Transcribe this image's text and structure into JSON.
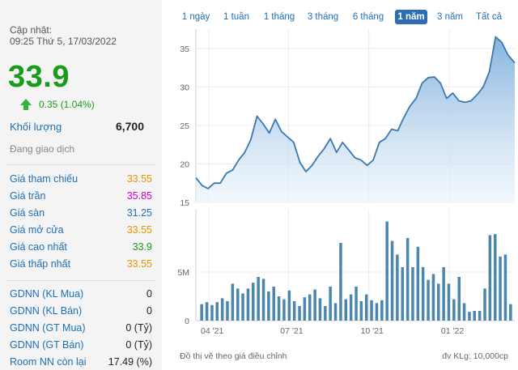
{
  "summary": {
    "update_label": "Cập nhật:",
    "update_time": "09:25 Thứ 5, 17/03/2022",
    "price": "33.9",
    "change": "0.35 (1.04%)",
    "volume_label": "Khối lượng",
    "volume_value": "6,700",
    "status": "Đang giao dịch"
  },
  "price_rows": [
    {
      "label": "Giá tham chiếu",
      "value": "33.55",
      "color": "#e69500"
    },
    {
      "label": "Giá trần",
      "value": "35.85",
      "color": "#cc00cc"
    },
    {
      "label": "Giá sàn",
      "value": "31.25",
      "color": "#1f6fb5"
    },
    {
      "label": "Giá mở cửa",
      "value": "33.55",
      "color": "#e69500"
    },
    {
      "label": "Giá cao nhất",
      "value": "33.9",
      "color": "#1a9c1a"
    },
    {
      "label": "Giá thấp nhất",
      "value": "33.55",
      "color": "#e69500"
    }
  ],
  "foreign_rows": [
    {
      "label": "GDNN (KL Mua)",
      "value": "0",
      "color": "#222222"
    },
    {
      "label": "GDNN (KL Bán)",
      "value": "0",
      "color": "#222222"
    },
    {
      "label": "GDNN (GT Mua)",
      "value": "0 (Tỷ)",
      "color": "#222222"
    },
    {
      "label": "GDNN (GT Bán)",
      "value": "0 (Tỷ)",
      "color": "#222222"
    },
    {
      "label": "Room NN còn lại",
      "value": "17.49 (%)",
      "color": "#222222"
    }
  ],
  "tabs": [
    {
      "label": "1 ngày",
      "active": false
    },
    {
      "label": "1 tuần",
      "active": false
    },
    {
      "label": "1 tháng",
      "active": false
    },
    {
      "label": "3 tháng",
      "active": false
    },
    {
      "label": "6 tháng",
      "active": false
    },
    {
      "label": "1 năm",
      "active": true
    },
    {
      "label": "3 năm",
      "active": false
    },
    {
      "label": "Tất cả",
      "active": false
    }
  ],
  "footer": {
    "left": "Đồ thị vẽ theo giá điều chỉnh",
    "right": "đv KLg: 10,000cp"
  },
  "colors": {
    "up": "#1a9c1a",
    "line": "#3a78b0",
    "bar": "#4a86ad"
  },
  "chart_data": {
    "type": "area",
    "price": {
      "x": [
        "2021-03-17",
        "2021-03-24",
        "2021-03-31",
        "2021-04-07",
        "2021-04-14",
        "2021-04-21",
        "2021-04-28",
        "2021-05-05",
        "2021-05-12",
        "2021-05-19",
        "2021-05-26",
        "2021-06-02",
        "2021-06-09",
        "2021-06-16",
        "2021-06-23",
        "2021-06-30",
        "2021-07-07",
        "2021-07-14",
        "2021-07-21",
        "2021-07-28",
        "2021-08-04",
        "2021-08-11",
        "2021-08-18",
        "2021-08-25",
        "2021-09-01",
        "2021-09-08",
        "2021-09-15",
        "2021-09-22",
        "2021-09-29",
        "2021-10-06",
        "2021-10-13",
        "2021-10-20",
        "2021-10-27",
        "2021-11-03",
        "2021-11-10",
        "2021-11-17",
        "2021-11-24",
        "2021-12-01",
        "2021-12-08",
        "2021-12-15",
        "2021-12-22",
        "2021-12-29",
        "2022-01-05",
        "2022-01-12",
        "2022-01-19",
        "2022-01-26",
        "2022-02-02",
        "2022-02-09",
        "2022-02-16",
        "2022-02-23",
        "2022-03-02",
        "2022-03-09",
        "2022-03-17"
      ],
      "y": [
        18.2,
        17.2,
        16.8,
        17.5,
        17.5,
        18.8,
        19.2,
        20.5,
        21.5,
        23.2,
        26.2,
        25.2,
        24.0,
        25.8,
        24.2,
        23.5,
        22.8,
        20.2,
        19.0,
        19.8,
        21.0,
        22.0,
        23.3,
        21.5,
        22.8,
        21.8,
        20.8,
        20.5,
        19.8,
        20.5,
        22.8,
        23.3,
        24.5,
        24.3,
        26.0,
        27.5,
        28.5,
        30.5,
        31.2,
        31.3,
        30.5,
        28.5,
        29.2,
        28.2,
        28.0,
        28.2,
        29.0,
        30.0,
        32.0,
        36.5,
        35.8,
        34.2,
        33.1
      ]
    },
    "volume": {
      "values": [
        1.7,
        1.9,
        1.6,
        1.9,
        2.3,
        2.0,
        3.8,
        3.3,
        2.8,
        3.3,
        3.9,
        4.5,
        4.3,
        3.0,
        3.5,
        2.5,
        2.2,
        3.1,
        2.0,
        1.5,
        2.4,
        2.7,
        3.2,
        2.3,
        1.5,
        3.5,
        1.8,
        8.0,
        2.2,
        2.7,
        3.5,
        2.0,
        2.7,
        2.1,
        1.8,
        2.1,
        10.2,
        8.2,
        6.8,
        5.5,
        8.5,
        5.5,
        7.6,
        5.5,
        4.2,
        4.8,
        3.8,
        5.5,
        3.8,
        2.2,
        4.5,
        1.8,
        0.9,
        1.0,
        1.0,
        3.3,
        8.8,
        8.9,
        6.6,
        6.8,
        1.7
      ],
      "unit": "10,000cp"
    },
    "y_ticks": [
      "35",
      "30",
      "25",
      "20",
      "15"
    ],
    "y_range": [
      15,
      37.5
    ],
    "vol_ticks": [
      "5M",
      "0"
    ],
    "vol_range": [
      0,
      11.5
    ],
    "x_ticks": [
      "04 '21",
      "07 '21",
      "10 '21",
      "01 '22"
    ],
    "x_range": [
      "2021-03-17",
      "2022-03-17"
    ]
  }
}
